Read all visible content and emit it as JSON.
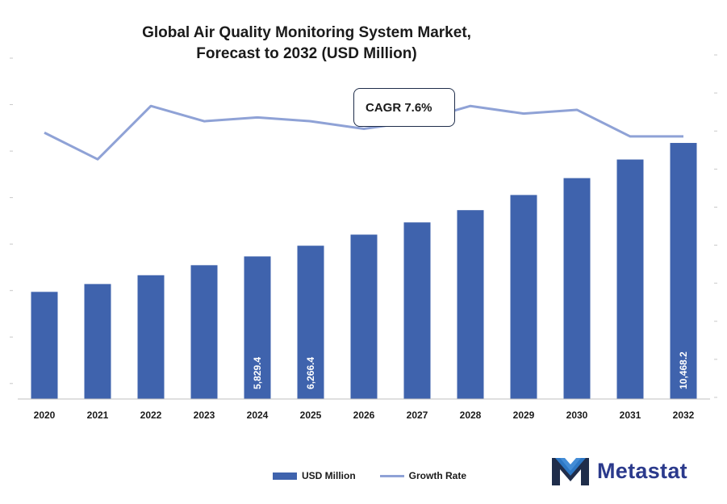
{
  "chart_data": {
    "type": "bar",
    "title_lines": [
      "Global Air Quality Monitoring System Market,",
      "Forecast to 2032 (USD Million)"
    ],
    "categories": [
      "2020",
      "2021",
      "2022",
      "2023",
      "2024",
      "2025",
      "2026",
      "2027",
      "2028",
      "2029",
      "2030",
      "2031",
      "2032"
    ],
    "series": [
      {
        "name": "USD Million",
        "type": "bar",
        "axis": "left",
        "values": [
          4380,
          4700,
          5060,
          5470,
          5829.4,
          6266.4,
          6720,
          7220,
          7720,
          8340,
          9030,
          9790,
          10468.2
        ]
      },
      {
        "name": "Growth Rate",
        "type": "line",
        "axis": "right",
        "values": [
          7.0,
          6.3,
          7.7,
          7.3,
          7.4,
          7.3,
          7.1,
          7.3,
          7.7,
          7.5,
          7.6,
          6.9,
          6.9
        ]
      }
    ],
    "data_labels": [
      {
        "category": "2024",
        "text": "5,829.4"
      },
      {
        "category": "2025",
        "text": "6,266.4"
      },
      {
        "category": "2032",
        "text": "10,468.2"
      }
    ],
    "ylim_left": [
      0,
      14000
    ],
    "ylim_right": [
      0,
      9
    ],
    "annotation": "CAGR 7.6%",
    "legend_position": "bottom",
    "colors": {
      "bar": "#3f63ad",
      "line": "#8fa2d6"
    },
    "grid": false
  },
  "brand": {
    "name": "Metastat"
  }
}
